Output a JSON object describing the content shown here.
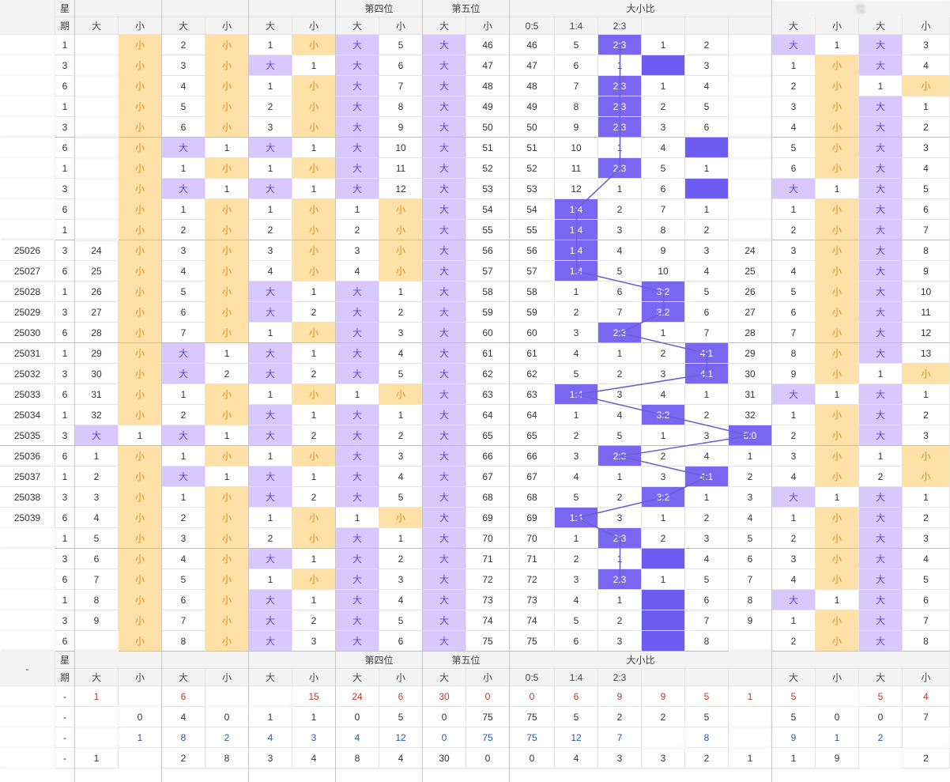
{
  "header": {
    "top": [
      "",
      "星",
      "",
      "",
      "",
      "",
      "",
      "",
      "第四位",
      "",
      "第五位",
      "",
      "大小比",
      "",
      "",
      "",
      "",
      "",
      "",
      "",
      "",
      ""
    ],
    "top_labels": {
      "issue": "",
      "week": "星",
      "pos4": "第四位",
      "pos5": "第五位",
      "ratio": "大小比",
      "last": "位"
    },
    "sub": [
      "",
      "期",
      "大",
      "小",
      "大",
      "小",
      "大",
      "小",
      "大",
      "小",
      "大",
      "小",
      "0:5",
      "1:4",
      "2:3",
      "",
      "",
      "",
      "大",
      "小",
      "大",
      "小"
    ]
  },
  "rows": [
    {
      "issue": "",
      "week": "1",
      "c": [
        "",
        "小",
        "2",
        "小",
        "1",
        "小",
        "大",
        "5",
        "大",
        "46",
        "46",
        "5",
        "2:3",
        "1",
        "2",
        "",
        "大",
        "1",
        "大",
        "3"
      ]
    },
    {
      "issue": "",
      "week": "3",
      "c": [
        "",
        "小",
        "3",
        "小",
        "大",
        "1",
        "大",
        "6",
        "大",
        "47",
        "47",
        "6",
        "1",
        "",
        "3",
        "",
        "1",
        "小",
        "大",
        "4"
      ]
    },
    {
      "issue": "",
      "week": "6",
      "c": [
        "",
        "小",
        "4",
        "小",
        "1",
        "小",
        "大",
        "7",
        "大",
        "48",
        "48",
        "7",
        "2:3",
        "1",
        "4",
        "",
        "2",
        "小",
        "1",
        "小"
      ]
    },
    {
      "issue": "",
      "week": "1",
      "c": [
        "",
        "小",
        "5",
        "小",
        "2",
        "小",
        "大",
        "8",
        "大",
        "49",
        "49",
        "8",
        "2:3",
        "2",
        "5",
        "",
        "3",
        "小",
        "大",
        "1"
      ]
    },
    {
      "issue": "",
      "week": "3",
      "c": [
        "",
        "小",
        "6",
        "小",
        "3",
        "小",
        "大",
        "9",
        "大",
        "50",
        "50",
        "9",
        "2:3",
        "3",
        "6",
        "",
        "4",
        "小",
        "大",
        "2"
      ]
    },
    {
      "issue": "",
      "week": "6",
      "c": [
        "",
        "小",
        "大",
        "1",
        "大",
        "1",
        "大",
        "10",
        "大",
        "51",
        "51",
        "10",
        "1",
        "4",
        "",
        "",
        "5",
        "小",
        "大",
        "3"
      ]
    },
    {
      "issue": "",
      "week": "1",
      "c": [
        "",
        "小",
        "1",
        "小",
        "1",
        "小",
        "大",
        "11",
        "大",
        "52",
        "52",
        "11",
        "2:3",
        "5",
        "1",
        "",
        "6",
        "小",
        "大",
        "4"
      ]
    },
    {
      "issue": "",
      "week": "3",
      "c": [
        "",
        "小",
        "大",
        "1",
        "大",
        "1",
        "大",
        "12",
        "大",
        "53",
        "53",
        "12",
        "1",
        "6",
        "",
        "",
        "大",
        "1",
        "大",
        "5"
      ]
    },
    {
      "issue": "",
      "week": "6",
      "c": [
        "",
        "小",
        "1",
        "小",
        "1",
        "小",
        "1",
        "小",
        "大",
        "54",
        "54",
        "1:4",
        "2",
        "7",
        "1",
        "",
        "1",
        "小",
        "大",
        "6"
      ]
    },
    {
      "issue": "",
      "week": "1",
      "c": [
        "",
        "小",
        "2",
        "小",
        "2",
        "小",
        "2",
        "小",
        "大",
        "55",
        "55",
        "1:4",
        "3",
        "8",
        "2",
        "",
        "2",
        "小",
        "大",
        "7"
      ]
    },
    {
      "issue": "25026",
      "week": "3",
      "c": [
        "24",
        "小",
        "3",
        "小",
        "3",
        "小",
        "3",
        "小",
        "大",
        "56",
        "56",
        "1:4",
        "4",
        "9",
        "3",
        "24",
        "3",
        "小",
        "大",
        "8"
      ]
    },
    {
      "issue": "25027",
      "week": "6",
      "c": [
        "25",
        "小",
        "4",
        "小",
        "4",
        "小",
        "4",
        "小",
        "大",
        "57",
        "57",
        "1:4",
        "5",
        "10",
        "4",
        "25",
        "4",
        "小",
        "大",
        "9"
      ]
    },
    {
      "issue": "25028",
      "week": "1",
      "c": [
        "26",
        "小",
        "5",
        "小",
        "大",
        "1",
        "大",
        "1",
        "大",
        "58",
        "58",
        "1",
        "6",
        "3:2",
        "5",
        "26",
        "5",
        "小",
        "大",
        "10"
      ]
    },
    {
      "issue": "25029",
      "week": "3",
      "c": [
        "27",
        "小",
        "6",
        "小",
        "大",
        "2",
        "大",
        "2",
        "大",
        "59",
        "59",
        "2",
        "7",
        "3:2",
        "6",
        "27",
        "6",
        "小",
        "大",
        "11"
      ]
    },
    {
      "issue": "25030",
      "week": "6",
      "c": [
        "28",
        "小",
        "7",
        "小",
        "1",
        "小",
        "大",
        "3",
        "大",
        "60",
        "60",
        "3",
        "2:3",
        "1",
        "7",
        "28",
        "7",
        "小",
        "大",
        "12"
      ]
    },
    {
      "issue": "25031",
      "week": "1",
      "c": [
        "29",
        "小",
        "大",
        "1",
        "大",
        "1",
        "大",
        "4",
        "大",
        "61",
        "61",
        "4",
        "1",
        "2",
        "4:1",
        "29",
        "8",
        "小",
        "大",
        "13"
      ]
    },
    {
      "issue": "25032",
      "week": "3",
      "c": [
        "30",
        "小",
        "大",
        "2",
        "大",
        "2",
        "大",
        "5",
        "大",
        "62",
        "62",
        "5",
        "2",
        "3",
        "4:1",
        "30",
        "9",
        "小",
        "1",
        "小"
      ]
    },
    {
      "issue": "25033",
      "week": "6",
      "c": [
        "31",
        "小",
        "1",
        "小",
        "1",
        "小",
        "1",
        "小",
        "大",
        "63",
        "63",
        "1:4",
        "3",
        "4",
        "1",
        "31",
        "大",
        "1",
        "大",
        "1"
      ]
    },
    {
      "issue": "25034",
      "week": "1",
      "c": [
        "32",
        "小",
        "2",
        "小",
        "大",
        "1",
        "大",
        "1",
        "大",
        "64",
        "64",
        "1",
        "4",
        "3:2",
        "2",
        "32",
        "1",
        "小",
        "大",
        "2"
      ]
    },
    {
      "issue": "25035",
      "week": "3",
      "c": [
        "大",
        "1",
        "大",
        "1",
        "大",
        "2",
        "大",
        "2",
        "大",
        "65",
        "65",
        "2",
        "5",
        "1",
        "3",
        "5:0",
        "2",
        "小",
        "大",
        "3"
      ]
    },
    {
      "issue": "25036",
      "week": "6",
      "c": [
        "1",
        "小",
        "1",
        "小",
        "1",
        "小",
        "大",
        "3",
        "大",
        "66",
        "66",
        "3",
        "2:3",
        "2",
        "4",
        "1",
        "3",
        "小",
        "1",
        "小"
      ]
    },
    {
      "issue": "25037",
      "week": "1",
      "c": [
        "2",
        "小",
        "大",
        "1",
        "大",
        "1",
        "大",
        "4",
        "大",
        "67",
        "67",
        "4",
        "1",
        "3",
        "4:1",
        "2",
        "4",
        "小",
        "2",
        "小"
      ]
    },
    {
      "issue": "25038",
      "week": "3",
      "c": [
        "3",
        "小",
        "1",
        "小",
        "大",
        "2",
        "大",
        "5",
        "大",
        "68",
        "68",
        "5",
        "2",
        "3:2",
        "1",
        "3",
        "大",
        "1",
        "大",
        "1"
      ]
    },
    {
      "issue": "25039",
      "week": "6",
      "c": [
        "4",
        "小",
        "2",
        "小",
        "1",
        "小",
        "1",
        "小",
        "大",
        "69",
        "69",
        "1:4",
        "3",
        "1",
        "2",
        "4",
        "1",
        "小",
        "大",
        "2"
      ]
    },
    {
      "issue": "",
      "week": "1",
      "c": [
        "5",
        "小",
        "3",
        "小",
        "2",
        "小",
        "大",
        "1",
        "大",
        "70",
        "70",
        "1",
        "2:3",
        "2",
        "3",
        "5",
        "2",
        "小",
        "大",
        "3"
      ]
    },
    {
      "issue": "",
      "week": "3",
      "c": [
        "6",
        "小",
        "4",
        "小",
        "大",
        "1",
        "大",
        "2",
        "大",
        "71",
        "71",
        "2",
        "1",
        "",
        "4",
        "6",
        "3",
        "小",
        "大",
        "4"
      ]
    },
    {
      "issue": "",
      "week": "6",
      "c": [
        "7",
        "小",
        "5",
        "小",
        "1",
        "小",
        "大",
        "3",
        "大",
        "72",
        "72",
        "3",
        "2:3",
        "1",
        "5",
        "7",
        "4",
        "小",
        "大",
        "5"
      ]
    },
    {
      "issue": "",
      "week": "1",
      "c": [
        "8",
        "小",
        "6",
        "小",
        "大",
        "1",
        "大",
        "4",
        "大",
        "73",
        "73",
        "4",
        "1",
        "",
        "6",
        "8",
        "大",
        "1",
        "大",
        "6"
      ]
    },
    {
      "issue": "",
      "week": "3",
      "c": [
        "9",
        "小",
        "7",
        "小",
        "大",
        "2",
        "大",
        "5",
        "大",
        "74",
        "74",
        "5",
        "2",
        "",
        "7",
        "9",
        "1",
        "小",
        "大",
        "7"
      ]
    },
    {
      "issue": "",
      "week": "6",
      "c": [
        "",
        "小",
        "8",
        "小",
        "大",
        "3",
        "大",
        "6",
        "大",
        "75",
        "75",
        "6",
        "3",
        "",
        "8",
        "",
        "2",
        "小",
        "大",
        "8"
      ]
    }
  ],
  "footer_header": {
    "top_labels": {
      "issue": "-",
      "week": "星",
      "pos4": "第四位",
      "pos5": "第五位",
      "ratio": "大小比"
    },
    "sub": [
      "",
      "期",
      "大",
      "小",
      "大",
      "小",
      "大",
      "小",
      "大",
      "小",
      "大",
      "小",
      "0:5",
      "1:4",
      "2:3",
      "",
      "",
      "",
      "大",
      "小",
      "大",
      "小"
    ]
  },
  "stats": [
    {
      "label": "",
      "week": "-",
      "c": [
        "1",
        "",
        "6",
        "",
        "",
        "15",
        "24",
        "6",
        "30",
        "0",
        "0",
        "6",
        "9",
        "9",
        "5",
        "1",
        "5",
        "",
        "5",
        "4"
      ],
      "tone": "red"
    },
    {
      "label": "",
      "week": "-",
      "c": [
        "",
        "0",
        "4",
        "0",
        "1",
        "1",
        "0",
        "5",
        "0",
        "75",
        "75",
        "5",
        "2",
        "2",
        "5",
        "",
        "5",
        "0",
        "0",
        "7"
      ],
      "tone": "dark"
    },
    {
      "label": "",
      "week": "-",
      "c": [
        "",
        "1",
        "8",
        "2",
        "4",
        "3",
        "4",
        "12",
        "0",
        "75",
        "75",
        "12",
        "7",
        "",
        "8",
        "",
        "9",
        "1",
        "2",
        ""
      ],
      "tone": "blue"
    },
    {
      "label": "",
      "week": "-",
      "c": [
        "1",
        "",
        "2",
        "8",
        "3",
        "4",
        "8",
        "4",
        "30",
        "0",
        "0",
        "4",
        "3",
        "3",
        "2",
        "1",
        "1",
        "9",
        "",
        "2"
      ],
      "tone": "dark"
    }
  ]
}
